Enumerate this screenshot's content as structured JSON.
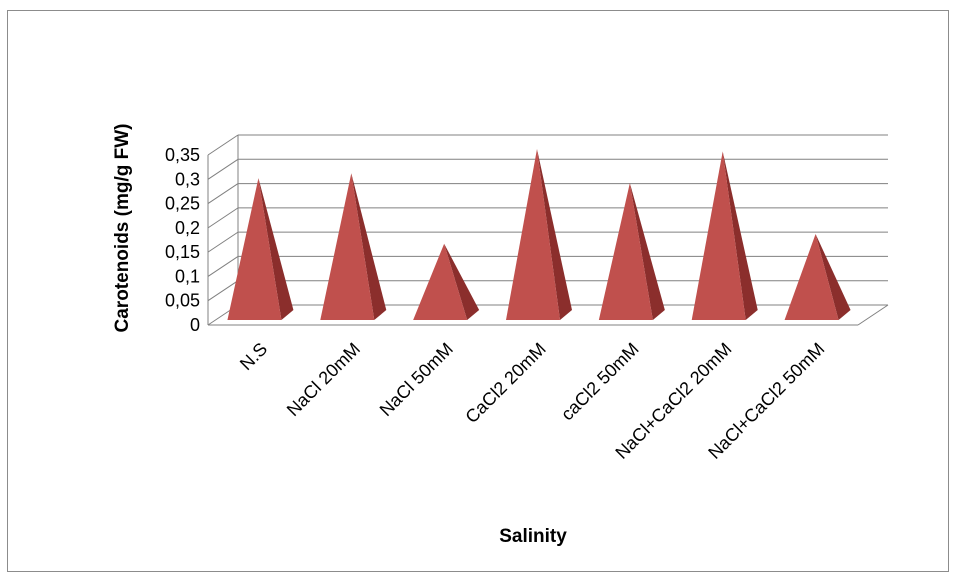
{
  "chart_data": {
    "type": "bar",
    "style": "3d-pyramid",
    "title": "",
    "xlabel": "Salinity",
    "ylabel": "Carotenoids (mg/g FW)",
    "categories": [
      "N.S",
      "NaCl 20mM",
      "NaCl 50mM",
      "CaCl2 20mM",
      "caCl2 50mM",
      "NaCl+CaCl2 20mM",
      "NaCl+CaCl2 50mM"
    ],
    "values": [
      0.29,
      0.3,
      0.155,
      0.35,
      0.28,
      0.345,
      0.175
    ],
    "ylim": [
      0,
      0.35
    ],
    "yticks": [
      "0",
      "0,05",
      "0,1",
      "0,15",
      "0,2",
      "0,25",
      "0,3",
      "0,35"
    ],
    "grid": true,
    "legend": "none",
    "colors": {
      "front": "#c0504d",
      "side": "#8b2e2c",
      "grid": "#808080"
    }
  }
}
